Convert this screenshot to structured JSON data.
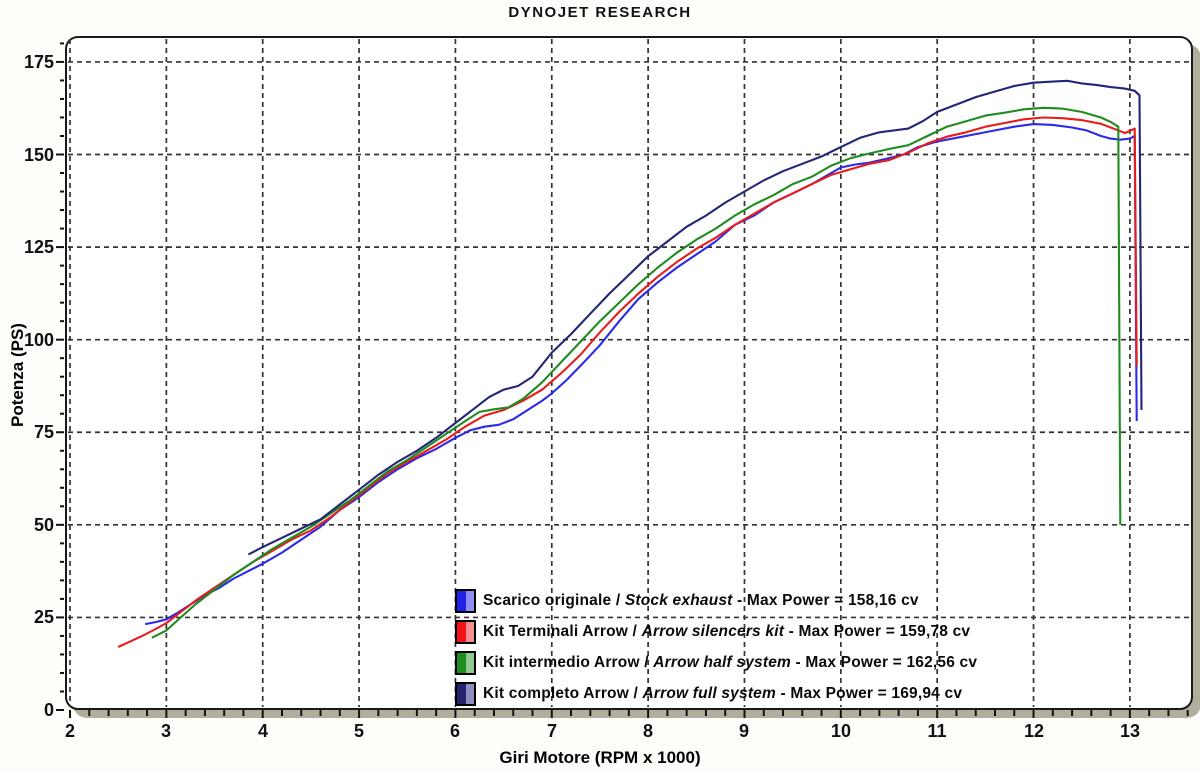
{
  "title": "DYNOJET RESEARCH",
  "legend": {
    "separator": " / ",
    "dash": " - "
  },
  "chart_data": {
    "type": "line",
    "title": "DYNOJET RESEARCH",
    "xlabel": "Giri Motore (RPM x 1000)",
    "ylabel": "Potenza (PS)",
    "xlim": [
      1.948,
      13.655
    ],
    "ylim": [
      0,
      182
    ],
    "x_ticks": [
      2,
      3,
      4,
      5,
      6,
      7,
      8,
      9,
      10,
      11,
      12,
      13
    ],
    "y_ticks": [
      0,
      25,
      50,
      75,
      100,
      125,
      150,
      175
    ],
    "x_minor_step": 0.2,
    "y_minor_step": 5,
    "grid": "dashed-both-major",
    "legend_position": "inside-bottom-right",
    "background_color": "#ffffff",
    "frame_shadow_color": "#b2ae9e",
    "series": [
      {
        "label_it": "Scarico originale",
        "label_en": "Stock exhaust",
        "max_label": "Max Power = 158,16 cv",
        "max_power_cv": 158.16,
        "line_color": "#2a2ae8",
        "swatch": [
          "#2121e8",
          "#8e8ef0"
        ],
        "points": [
          [
            2.78,
            23.2
          ],
          [
            2.9,
            23.8
          ],
          [
            3.0,
            24.5
          ],
          [
            3.1,
            26.0
          ],
          [
            3.25,
            28.5
          ],
          [
            3.4,
            31.0
          ],
          [
            3.55,
            33.0
          ],
          [
            3.7,
            35.5
          ],
          [
            3.85,
            37.5
          ],
          [
            4.0,
            39.5
          ],
          [
            4.2,
            42.5
          ],
          [
            4.4,
            46.0
          ],
          [
            4.6,
            49.5
          ],
          [
            4.8,
            54.0
          ],
          [
            5.0,
            57.5
          ],
          [
            5.2,
            61.5
          ],
          [
            5.4,
            65.0
          ],
          [
            5.6,
            68.0
          ],
          [
            5.8,
            70.5
          ],
          [
            6.0,
            73.5
          ],
          [
            6.15,
            75.5
          ],
          [
            6.3,
            76.5
          ],
          [
            6.45,
            77.0
          ],
          [
            6.6,
            78.5
          ],
          [
            6.75,
            81.0
          ],
          [
            6.9,
            83.5
          ],
          [
            7.0,
            85.5
          ],
          [
            7.15,
            89.0
          ],
          [
            7.3,
            93.0
          ],
          [
            7.5,
            98.5
          ],
          [
            7.7,
            105.0
          ],
          [
            7.9,
            111.0
          ],
          [
            8.1,
            115.5
          ],
          [
            8.3,
            119.5
          ],
          [
            8.5,
            123.0
          ],
          [
            8.7,
            126.5
          ],
          [
            8.9,
            131.0
          ],
          [
            9.1,
            133.5
          ],
          [
            9.3,
            137.0
          ],
          [
            9.5,
            139.5
          ],
          [
            9.7,
            142.0
          ],
          [
            9.9,
            145.0
          ],
          [
            10.0,
            146.5
          ],
          [
            10.15,
            147.3
          ],
          [
            10.3,
            147.8
          ],
          [
            10.5,
            149.0
          ],
          [
            10.65,
            150.0
          ],
          [
            10.8,
            152.0
          ],
          [
            11.0,
            153.5
          ],
          [
            11.2,
            154.5
          ],
          [
            11.4,
            155.5
          ],
          [
            11.6,
            156.5
          ],
          [
            11.8,
            157.5
          ],
          [
            12.0,
            158.2
          ],
          [
            12.2,
            158.0
          ],
          [
            12.4,
            157.3
          ],
          [
            12.55,
            156.5
          ],
          [
            12.7,
            155.0
          ],
          [
            12.8,
            154.3
          ],
          [
            12.9,
            154.0
          ],
          [
            13.0,
            154.3
          ],
          [
            13.05,
            155.0
          ]
        ],
        "end_drop_ps": 78
      },
      {
        "label_it": "Kit Terminali Arrow",
        "label_en": "Arrow silencers kit",
        "max_label": "Max Power = 159,78 cv",
        "max_power_cv": 159.78,
        "line_color": "#e81c1c",
        "swatch": [
          "#f01414",
          "#f58f8f"
        ],
        "points": [
          [
            2.5,
            17.0
          ],
          [
            2.6,
            18.2
          ],
          [
            2.75,
            20.0
          ],
          [
            2.9,
            22.0
          ],
          [
            3.0,
            23.5
          ],
          [
            3.15,
            26.5
          ],
          [
            3.3,
            29.5
          ],
          [
            3.5,
            33.0
          ],
          [
            3.7,
            36.5
          ],
          [
            3.9,
            40.0
          ],
          [
            4.1,
            43.0
          ],
          [
            4.3,
            46.0
          ],
          [
            4.5,
            48.5
          ],
          [
            4.7,
            52.0
          ],
          [
            4.9,
            56.0
          ],
          [
            5.1,
            60.0
          ],
          [
            5.3,
            64.0
          ],
          [
            5.5,
            67.0
          ],
          [
            5.7,
            70.0
          ],
          [
            5.9,
            73.0
          ],
          [
            6.1,
            76.5
          ],
          [
            6.3,
            79.5
          ],
          [
            6.5,
            81.0
          ],
          [
            6.7,
            83.5
          ],
          [
            6.9,
            86.5
          ],
          [
            7.1,
            91.0
          ],
          [
            7.3,
            96.0
          ],
          [
            7.5,
            102.0
          ],
          [
            7.7,
            107.5
          ],
          [
            7.9,
            112.5
          ],
          [
            8.1,
            117.0
          ],
          [
            8.3,
            121.0
          ],
          [
            8.5,
            124.5
          ],
          [
            8.7,
            127.5
          ],
          [
            8.9,
            131.0
          ],
          [
            9.1,
            134.0
          ],
          [
            9.3,
            137.0
          ],
          [
            9.5,
            139.5
          ],
          [
            9.7,
            142.0
          ],
          [
            9.9,
            144.5
          ],
          [
            10.1,
            146.0
          ],
          [
            10.3,
            147.5
          ],
          [
            10.5,
            148.5
          ],
          [
            10.7,
            150.5
          ],
          [
            10.9,
            153.0
          ],
          [
            11.1,
            154.8
          ],
          [
            11.3,
            156.0
          ],
          [
            11.5,
            157.5
          ],
          [
            11.7,
            158.5
          ],
          [
            11.9,
            159.5
          ],
          [
            12.1,
            160.0
          ],
          [
            12.3,
            159.8
          ],
          [
            12.5,
            159.3
          ],
          [
            12.7,
            158.3
          ],
          [
            12.85,
            156.8
          ],
          [
            12.95,
            155.8
          ],
          [
            13.05,
            157.0
          ]
        ],
        "end_drop_ps": 93
      },
      {
        "label_it": "Kit intermedio Arrow",
        "label_en": "Arrow half system",
        "max_label": "Max Power = 162,56 cv",
        "max_power_cv": 162.56,
        "line_color": "#1f8c1f",
        "swatch": [
          "#1f8c1f",
          "#8fc98f"
        ],
        "points": [
          [
            2.85,
            19.5
          ],
          [
            3.0,
            21.5
          ],
          [
            3.15,
            25.0
          ],
          [
            3.3,
            28.5
          ],
          [
            3.5,
            32.5
          ],
          [
            3.7,
            36.5
          ],
          [
            3.9,
            40.0
          ],
          [
            4.1,
            43.5
          ],
          [
            4.3,
            46.5
          ],
          [
            4.5,
            49.5
          ],
          [
            4.7,
            53.0
          ],
          [
            4.9,
            56.5
          ],
          [
            5.1,
            60.5
          ],
          [
            5.3,
            64.5
          ],
          [
            5.5,
            67.5
          ],
          [
            5.7,
            71.0
          ],
          [
            5.9,
            74.5
          ],
          [
            6.1,
            78.0
          ],
          [
            6.25,
            80.5
          ],
          [
            6.4,
            81.2
          ],
          [
            6.55,
            81.7
          ],
          [
            6.7,
            84.0
          ],
          [
            6.9,
            88.5
          ],
          [
            7.1,
            94.0
          ],
          [
            7.3,
            99.5
          ],
          [
            7.5,
            105.0
          ],
          [
            7.7,
            110.0
          ],
          [
            7.9,
            115.0
          ],
          [
            8.1,
            119.5
          ],
          [
            8.3,
            123.5
          ],
          [
            8.5,
            127.0
          ],
          [
            8.7,
            130.0
          ],
          [
            8.9,
            133.5
          ],
          [
            9.1,
            136.5
          ],
          [
            9.3,
            139.0
          ],
          [
            9.5,
            142.0
          ],
          [
            9.7,
            144.0
          ],
          [
            9.9,
            147.0
          ],
          [
            10.1,
            149.0
          ],
          [
            10.3,
            150.3
          ],
          [
            10.5,
            151.5
          ],
          [
            10.7,
            152.5
          ],
          [
            10.9,
            155.0
          ],
          [
            11.1,
            157.5
          ],
          [
            11.3,
            159.0
          ],
          [
            11.5,
            160.5
          ],
          [
            11.7,
            161.3
          ],
          [
            11.9,
            162.2
          ],
          [
            12.1,
            162.6
          ],
          [
            12.3,
            162.4
          ],
          [
            12.5,
            161.5
          ],
          [
            12.7,
            160.0
          ],
          [
            12.8,
            158.8
          ],
          [
            12.88,
            157.5
          ]
        ],
        "end_drop_ps": 50
      },
      {
        "label_it": "Kit completo Arrow",
        "label_en": "Arrow full system",
        "max_label": "Max Power = 169,94 cv",
        "max_power_cv": 169.94,
        "line_color": "#252578",
        "swatch": [
          "#24246e",
          "#8f8fbf"
        ],
        "points": [
          [
            3.85,
            42.0
          ],
          [
            4.0,
            44.0
          ],
          [
            4.2,
            46.5
          ],
          [
            4.4,
            49.0
          ],
          [
            4.6,
            51.5
          ],
          [
            4.8,
            55.5
          ],
          [
            5.0,
            59.5
          ],
          [
            5.2,
            63.5
          ],
          [
            5.4,
            67.0
          ],
          [
            5.6,
            70.0
          ],
          [
            5.8,
            73.5
          ],
          [
            6.0,
            77.5
          ],
          [
            6.2,
            81.5
          ],
          [
            6.35,
            84.5
          ],
          [
            6.5,
            86.5
          ],
          [
            6.65,
            87.5
          ],
          [
            6.8,
            90.0
          ],
          [
            7.0,
            96.5
          ],
          [
            7.2,
            101.5
          ],
          [
            7.4,
            107.0
          ],
          [
            7.6,
            112.5
          ],
          [
            7.8,
            117.5
          ],
          [
            8.0,
            122.5
          ],
          [
            8.2,
            126.5
          ],
          [
            8.4,
            130.5
          ],
          [
            8.6,
            133.5
          ],
          [
            8.8,
            137.0
          ],
          [
            9.0,
            140.0
          ],
          [
            9.2,
            143.0
          ],
          [
            9.4,
            145.5
          ],
          [
            9.6,
            147.5
          ],
          [
            9.8,
            149.5
          ],
          [
            10.0,
            152.0
          ],
          [
            10.2,
            154.5
          ],
          [
            10.4,
            156.0
          ],
          [
            10.55,
            156.5
          ],
          [
            10.7,
            157.0
          ],
          [
            10.85,
            159.0
          ],
          [
            11.0,
            161.5
          ],
          [
            11.2,
            163.5
          ],
          [
            11.4,
            165.5
          ],
          [
            11.6,
            167.0
          ],
          [
            11.8,
            168.5
          ],
          [
            12.0,
            169.4
          ],
          [
            12.2,
            169.7
          ],
          [
            12.35,
            169.9
          ],
          [
            12.5,
            169.2
          ],
          [
            12.65,
            168.8
          ],
          [
            12.8,
            168.2
          ],
          [
            12.95,
            167.8
          ],
          [
            13.05,
            167.2
          ],
          [
            13.1,
            166.0
          ]
        ],
        "end_drop_ps": 81
      }
    ]
  }
}
